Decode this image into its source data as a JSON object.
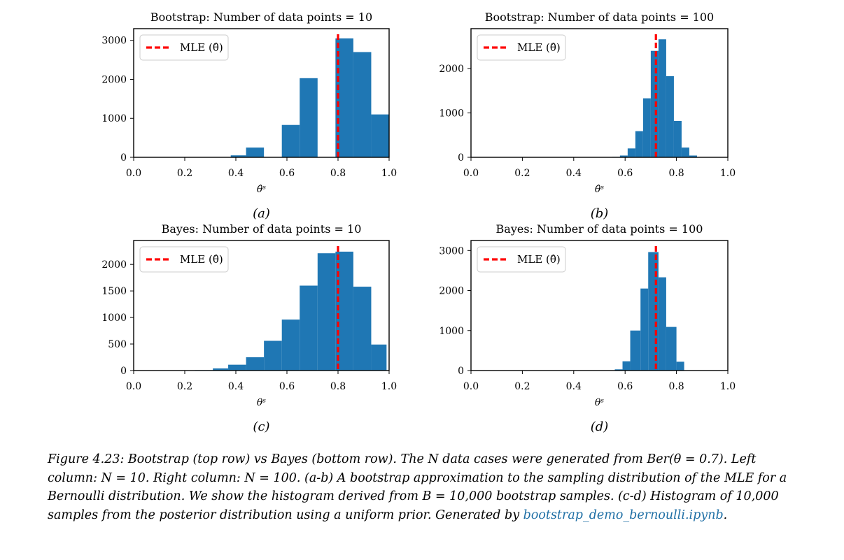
{
  "chart_data": [
    {
      "type": "bar",
      "title": "Bootstrap: Number of data points = 10",
      "xlabel": "θ̂ˢ",
      "panel_label": "(a)",
      "xlim": [
        0.0,
        1.0
      ],
      "ylim": [
        0,
        3300
      ],
      "xticks": [
        "0.0",
        "0.2",
        "0.4",
        "0.6",
        "0.8",
        "1.0"
      ],
      "yticks": [
        0,
        1000,
        2000,
        3000
      ],
      "bins": [
        {
          "x0": 0.38,
          "x1": 0.44,
          "value": 50
        },
        {
          "x0": 0.44,
          "x1": 0.51,
          "value": 250
        },
        {
          "x0": 0.58,
          "x1": 0.65,
          "value": 830
        },
        {
          "x0": 0.65,
          "x1": 0.72,
          "value": 2030
        },
        {
          "x0": 0.79,
          "x1": 0.86,
          "value": 3050
        },
        {
          "x0": 0.86,
          "x1": 0.93,
          "value": 2700
        },
        {
          "x0": 0.93,
          "x1": 1.0,
          "value": 1100
        }
      ],
      "mle": 0.8,
      "legend": "MLE (θ̂)"
    },
    {
      "type": "bar",
      "title": "Bootstrap: Number of data points = 100",
      "xlabel": "θ̂ˢ",
      "panel_label": "(b)",
      "xlim": [
        0.0,
        1.0
      ],
      "ylim": [
        0,
        2900
      ],
      "xticks": [
        "0.0",
        "0.2",
        "0.4",
        "0.6",
        "0.8",
        "1.0"
      ],
      "yticks": [
        0,
        1000,
        2000
      ],
      "bins": [
        {
          "x0": 0.55,
          "x1": 0.58,
          "value": 10
        },
        {
          "x0": 0.58,
          "x1": 0.61,
          "value": 40
        },
        {
          "x0": 0.61,
          "x1": 0.64,
          "value": 200
        },
        {
          "x0": 0.64,
          "x1": 0.67,
          "value": 590
        },
        {
          "x0": 0.67,
          "x1": 0.7,
          "value": 1330
        },
        {
          "x0": 0.7,
          "x1": 0.73,
          "value": 2400
        },
        {
          "x0": 0.73,
          "x1": 0.76,
          "value": 2660
        },
        {
          "x0": 0.76,
          "x1": 0.79,
          "value": 1830
        },
        {
          "x0": 0.79,
          "x1": 0.82,
          "value": 820
        },
        {
          "x0": 0.82,
          "x1": 0.85,
          "value": 220
        },
        {
          "x0": 0.85,
          "x1": 0.88,
          "value": 40
        }
      ],
      "mle": 0.72,
      "legend": "MLE (θ̂)"
    },
    {
      "type": "bar",
      "title": "Bayes: Number of data points = 10",
      "xlabel": "θˢ",
      "panel_label": "(c)",
      "xlim": [
        0.0,
        1.0
      ],
      "ylim": [
        0,
        2450
      ],
      "xticks": [
        "0.0",
        "0.2",
        "0.4",
        "0.6",
        "0.8",
        "1.0"
      ],
      "yticks": [
        0,
        500,
        1000,
        1500,
        2000
      ],
      "bins": [
        {
          "x0": 0.24,
          "x1": 0.31,
          "value": 8
        },
        {
          "x0": 0.31,
          "x1": 0.37,
          "value": 40
        },
        {
          "x0": 0.37,
          "x1": 0.44,
          "value": 110
        },
        {
          "x0": 0.44,
          "x1": 0.51,
          "value": 250
        },
        {
          "x0": 0.51,
          "x1": 0.58,
          "value": 560
        },
        {
          "x0": 0.58,
          "x1": 0.65,
          "value": 960
        },
        {
          "x0": 0.65,
          "x1": 0.72,
          "value": 1600
        },
        {
          "x0": 0.72,
          "x1": 0.79,
          "value": 2210
        },
        {
          "x0": 0.79,
          "x1": 0.86,
          "value": 2240
        },
        {
          "x0": 0.86,
          "x1": 0.93,
          "value": 1580
        },
        {
          "x0": 0.93,
          "x1": 0.99,
          "value": 490
        }
      ],
      "mle": 0.8,
      "legend": "MLE (θ̂)"
    },
    {
      "type": "bar",
      "title": "Bayes: Number of data points = 100",
      "xlabel": "θˢ",
      "panel_label": "(d)",
      "xlim": [
        0.0,
        1.0
      ],
      "ylim": [
        0,
        3250
      ],
      "xticks": [
        "0.0",
        "0.2",
        "0.4",
        "0.6",
        "0.8",
        "1.0"
      ],
      "yticks": [
        0,
        1000,
        2000,
        3000
      ],
      "bins": [
        {
          "x0": 0.56,
          "x1": 0.59,
          "value": 30
        },
        {
          "x0": 0.59,
          "x1": 0.62,
          "value": 230
        },
        {
          "x0": 0.62,
          "x1": 0.66,
          "value": 1000
        },
        {
          "x0": 0.66,
          "x1": 0.69,
          "value": 2050
        },
        {
          "x0": 0.69,
          "x1": 0.73,
          "value": 2960
        },
        {
          "x0": 0.73,
          "x1": 0.76,
          "value": 2330
        },
        {
          "x0": 0.76,
          "x1": 0.8,
          "value": 1090
        },
        {
          "x0": 0.8,
          "x1": 0.83,
          "value": 220
        }
      ],
      "mle": 0.72,
      "legend": "MLE (θ̂)"
    }
  ],
  "colors": {
    "bar": "#1f77b4",
    "mle_line": "#ff0000",
    "link": "#1f6fa5"
  },
  "caption": {
    "text": "Figure 4.23: Bootstrap (top row) vs Bayes (bottom row). The N data cases were generated from Ber(θ = 0.7). Left column: N = 10. Right column: N = 100. (a-b) A bootstrap approximation to the sampling distribution of the MLE for a Bernoulli distribution. We show the histogram derived from B = 10,000 bootstrap samples. (c-d) Histogram of 10,000 samples from the posterior distribution using a uniform prior. Generated by ",
    "link_text": "bootstrap_demo_bernoulli.ipynb",
    "end": "."
  }
}
